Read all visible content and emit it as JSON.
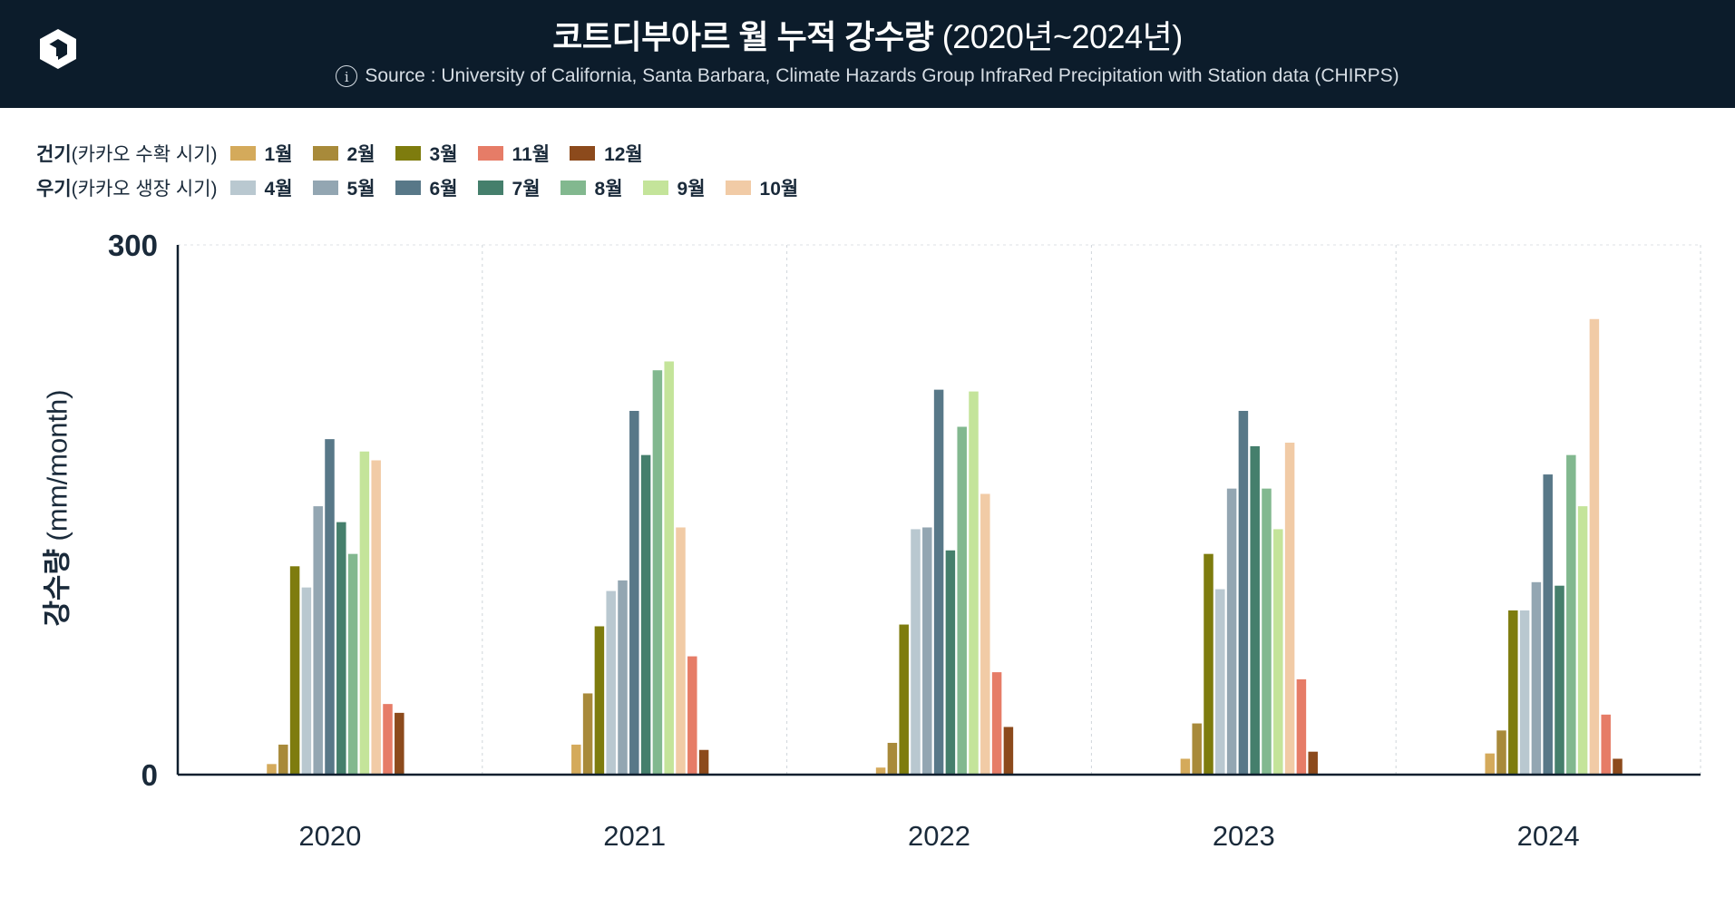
{
  "header": {
    "title_bold": "코트디부아르 월 누적 강수량",
    "title_light": "(2020년~2024년)",
    "source": "Source :  University of California, Santa Barbara, Climate Hazards Group InfraRed Precipitation with Station data (CHIRPS)"
  },
  "legend": {
    "dry": {
      "group_bold": "건기",
      "group_rest": "(카카오 수확 시기)"
    },
    "wet": {
      "group_bold": "우기",
      "group_rest": "(카카오 생장 시기)"
    }
  },
  "colors": {
    "header_bg": "#0c1c2b",
    "1월": "#d4aa5b",
    "2월": "#a88a3a",
    "3월": "#7e7c0e",
    "4월": "#b9c8d0",
    "5월": "#93a6b2",
    "6월": "#587888",
    "7월": "#457f6c",
    "8월": "#82b88f",
    "9월": "#c4e49a",
    "10월": "#f1cba6",
    "11월": "#e67c67",
    "12월": "#8c4a1c"
  },
  "chart_data": {
    "type": "bar",
    "ylabel_bold": "강수량",
    "ylabel_rest": "(mm/month)",
    "ylim": [
      0,
      300
    ],
    "yticks": [
      "0",
      "300"
    ],
    "grid": "vertical dashed between years",
    "legend_placement": "top-left",
    "categories": [
      "2020",
      "2021",
      "2022",
      "2023",
      "2024"
    ],
    "series": [
      {
        "name": "1월",
        "group": "dry",
        "values": [
          6,
          17,
          4,
          9,
          12
        ]
      },
      {
        "name": "2월",
        "group": "dry",
        "values": [
          17,
          46,
          18,
          29,
          25
        ]
      },
      {
        "name": "3월",
        "group": "dry",
        "values": [
          118,
          84,
          85,
          125,
          93
        ]
      },
      {
        "name": "4월",
        "group": "wet",
        "values": [
          106,
          104,
          139,
          105,
          93
        ]
      },
      {
        "name": "5월",
        "group": "wet",
        "values": [
          152,
          110,
          140,
          162,
          109
        ]
      },
      {
        "name": "6월",
        "group": "wet",
        "values": [
          190,
          206,
          218,
          206,
          170
        ]
      },
      {
        "name": "7월",
        "group": "wet",
        "values": [
          143,
          181,
          127,
          186,
          107
        ]
      },
      {
        "name": "8월",
        "group": "wet",
        "values": [
          125,
          229,
          197,
          162,
          181
        ]
      },
      {
        "name": "9월",
        "group": "wet",
        "values": [
          183,
          234,
          217,
          139,
          152
        ]
      },
      {
        "name": "10월",
        "group": "wet",
        "values": [
          178,
          140,
          159,
          188,
          258
        ]
      },
      {
        "name": "11월",
        "group": "dry",
        "values": [
          40,
          67,
          58,
          54,
          34
        ]
      },
      {
        "name": "12월",
        "group": "dry",
        "values": [
          35,
          14,
          27,
          13,
          9
        ]
      }
    ]
  }
}
